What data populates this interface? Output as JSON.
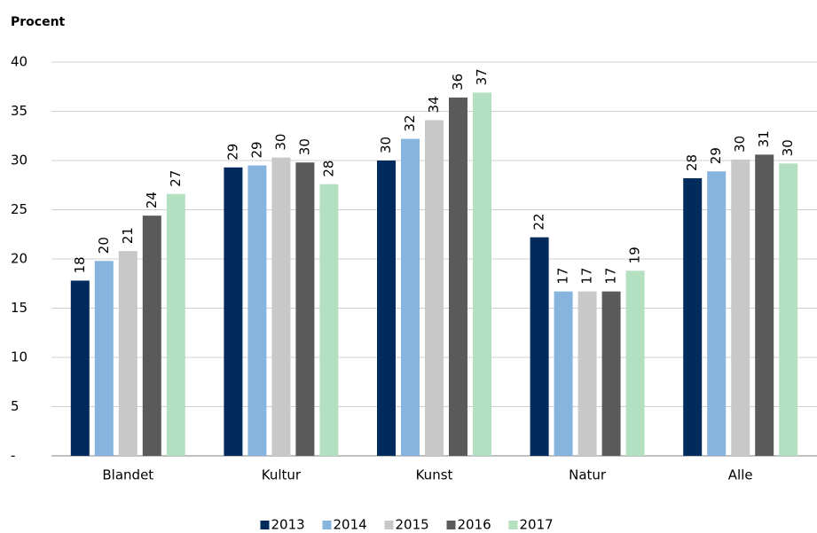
{
  "chart_data": {
    "type": "bar",
    "title": "Procent",
    "categories": [
      "Blandet",
      "Kultur",
      "Kunst",
      "Natur",
      "Alle"
    ],
    "series": [
      {
        "name": "2013",
        "color": "#002b5c",
        "values": [
          17.8,
          29.3,
          30.0,
          22.2,
          28.2
        ],
        "value_labels": [
          "18",
          "29",
          "30",
          "22",
          "28"
        ]
      },
      {
        "name": "2014",
        "color": "#86b4de",
        "values": [
          19.8,
          29.5,
          32.2,
          16.7,
          28.9
        ],
        "value_labels": [
          "20",
          "29",
          "32",
          "17",
          "29"
        ]
      },
      {
        "name": "2015",
        "color": "#c8c8c8",
        "values": [
          20.8,
          30.3,
          34.1,
          16.7,
          30.1
        ],
        "value_labels": [
          "21",
          "30",
          "34",
          "17",
          "30"
        ]
      },
      {
        "name": "2016",
        "color": "#5a5a5a",
        "values": [
          24.4,
          29.8,
          36.4,
          16.7,
          30.6
        ],
        "value_labels": [
          "24",
          "30",
          "36",
          "17",
          "31"
        ]
      },
      {
        "name": "2017",
        "color": "#b3e0c0",
        "values": [
          26.6,
          27.6,
          36.9,
          18.8,
          29.7
        ],
        "value_labels": [
          "27",
          "28",
          "37",
          "19",
          "30"
        ]
      }
    ],
    "ylim": [
      0,
      40
    ],
    "yticks": [
      {
        "value": 0,
        "label": "-"
      },
      5,
      10,
      15,
      20,
      25,
      30,
      35,
      40
    ],
    "grid": true,
    "legend": "bottom"
  }
}
